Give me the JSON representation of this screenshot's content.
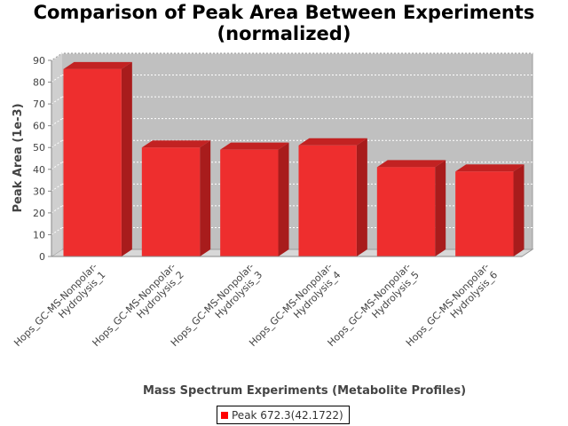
{
  "chart_data": {
    "type": "bar",
    "title": "Comparison of Peak Area Between Experiments (normalized)",
    "title_lines": [
      "Comparison of Peak Area Between Experiments",
      "(normalized)"
    ],
    "xlabel": "Mass Spectrum Experiments (Metabolite Profiles)",
    "ylabel": "Peak Area (1e-3)",
    "categories": [
      "Hops_GC-MS-Nonpolar-Hydrolysis_1",
      "Hops_GC-MS-Nonpolar-Hydrolysis_2",
      "Hops_GC-MS-Nonpolar-Hydrolysis_3",
      "Hops_GC-MS-Nonpolar-Hydrolysis_4",
      "Hops_GC-MS-Nonpolar-Hydrolysis_5",
      "Hops_GC-MS-Nonpolar-Hydrolysis_6"
    ],
    "category_label_lines": [
      [
        "Hops_GC-MS-Nonpolar-",
        "Hydrolysis_1"
      ],
      [
        "Hops_GC-MS-Nonpolar-",
        "Hydrolysis_2"
      ],
      [
        "Hops_GC-MS-Nonpolar-",
        "Hydrolysis_3"
      ],
      [
        "Hops_GC-MS-Nonpolar-",
        "Hydrolysis_4"
      ],
      [
        "Hops_GC-MS-Nonpolar-",
        "Hydrolysis_5"
      ],
      [
        "Hops_GC-MS-Nonpolar-",
        "Hydrolysis_6"
      ]
    ],
    "series": [
      {
        "name": "Peak 672.3(42.1722)",
        "values": [
          86,
          50,
          49,
          51,
          41,
          39
        ]
      }
    ],
    "ylim": [
      0,
      90
    ],
    "yticks": [
      0,
      10,
      20,
      30,
      40,
      50,
      60,
      70,
      80,
      90
    ],
    "grid": true,
    "legend_position": "bottom",
    "colors": {
      "bar_face": "#ee2e2e",
      "bar_top": "#c22222",
      "bar_side": "#a81c1c",
      "plot_bg": "#c0c0c0",
      "legend_swatch": "#ff0000"
    }
  }
}
